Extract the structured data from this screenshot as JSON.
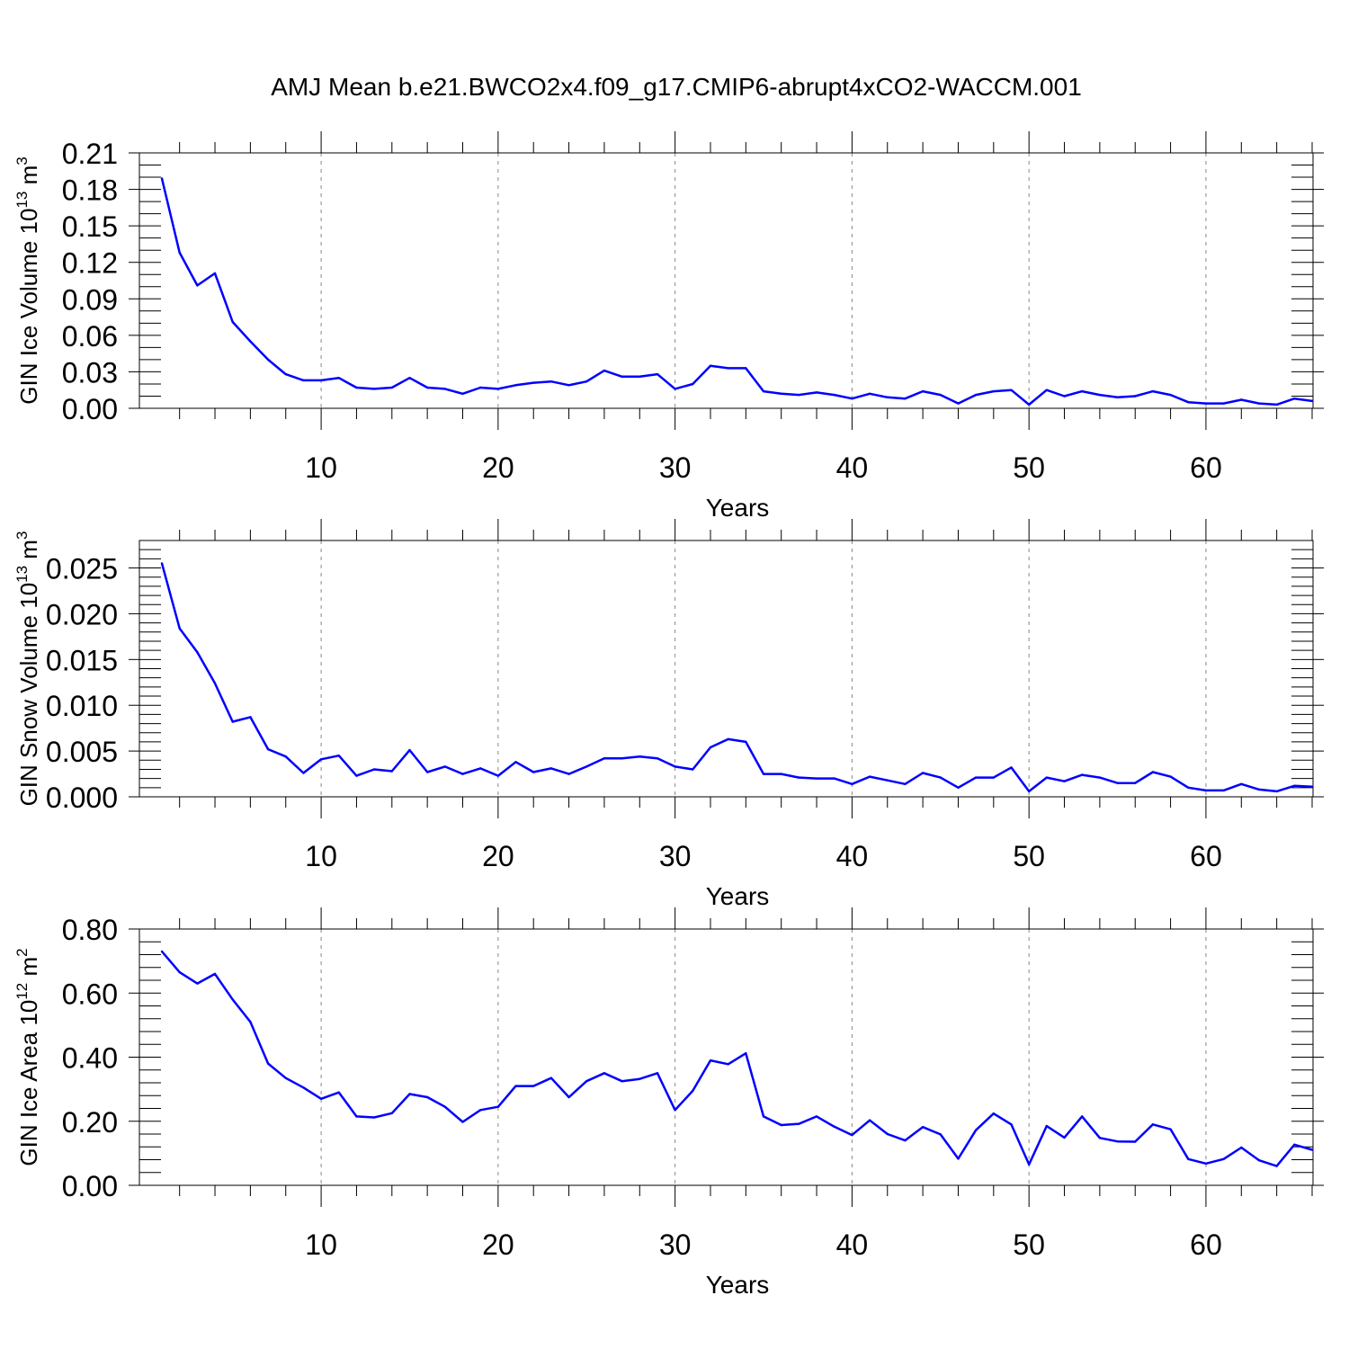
{
  "title": "AMJ Mean b.e21.BWCO2x4.f09_g17.CMIP6-abrupt4xCO2-WACCM.001",
  "colors": {
    "line": "#0000ff",
    "axis": "#000000",
    "grid": "#888888"
  },
  "chart_data": [
    {
      "type": "line",
      "ylabel": {
        "base": "GIN Ice Volume 10",
        "exp": "13",
        "unit": " m",
        "unit_exp": "3"
      },
      "xlabel": "Years",
      "xlim": [
        1,
        66
      ],
      "ylim": [
        0,
        0.21
      ],
      "xticks": [
        "10",
        "20",
        "30",
        "40",
        "50",
        "60"
      ],
      "yticks": [
        "0.00",
        "0.03",
        "0.06",
        "0.09",
        "0.12",
        "0.15",
        "0.18",
        "0.21"
      ],
      "grid": "vertical dashed at major x ticks",
      "series": [
        {
          "values": [
            0.189,
            0.128,
            0.101,
            0.111,
            0.071,
            0.055,
            0.04,
            0.028,
            0.023,
            0.023,
            0.025,
            0.017,
            0.016,
            0.017,
            0.025,
            0.017,
            0.016,
            0.012,
            0.017,
            0.016,
            0.019,
            0.021,
            0.022,
            0.019,
            0.022,
            0.031,
            0.026,
            0.026,
            0.028,
            0.016,
            0.02,
            0.035,
            0.033,
            0.033,
            0.014,
            0.012,
            0.011,
            0.013,
            0.011,
            0.008,
            0.012,
            0.009,
            0.008,
            0.014,
            0.011,
            0.004,
            0.011,
            0.014,
            0.015,
            0.003,
            0.015,
            0.01,
            0.014,
            0.011,
            0.009,
            0.01,
            0.014,
            0.011,
            0.005,
            0.004,
            0.004,
            0.007,
            0.004,
            0.003,
            0.008,
            0.006
          ]
        }
      ]
    },
    {
      "type": "line",
      "ylabel": {
        "base": "GIN Snow Volume 10",
        "exp": "13",
        "unit": " m",
        "unit_exp": "3"
      },
      "xlabel": "Years",
      "xlim": [
        1,
        66
      ],
      "ylim": [
        0,
        0.028
      ],
      "xticks": [
        "10",
        "20",
        "30",
        "40",
        "50",
        "60"
      ],
      "yticks": [
        "0.000",
        "0.005",
        "0.010",
        "0.015",
        "0.020",
        "0.025"
      ],
      "grid": "vertical dashed at major x ticks",
      "series": [
        {
          "values": [
            0.0255,
            0.0184,
            0.0158,
            0.0124,
            0.0082,
            0.0087,
            0.0052,
            0.0044,
            0.0026,
            0.0041,
            0.0045,
            0.0023,
            0.003,
            0.0028,
            0.0051,
            0.0027,
            0.0033,
            0.0025,
            0.0031,
            0.0023,
            0.0038,
            0.0027,
            0.0031,
            0.0025,
            0.0033,
            0.0042,
            0.0042,
            0.0044,
            0.0042,
            0.0033,
            0.003,
            0.0054,
            0.0063,
            0.006,
            0.0025,
            0.0025,
            0.0021,
            0.002,
            0.002,
            0.0014,
            0.0022,
            0.0018,
            0.0014,
            0.0026,
            0.0021,
            0.001,
            0.0021,
            0.0021,
            0.0032,
            0.0006,
            0.0021,
            0.0017,
            0.0024,
            0.0021,
            0.0015,
            0.0015,
            0.0027,
            0.0022,
            0.001,
            0.0007,
            0.0007,
            0.0014,
            0.0008,
            0.0006,
            0.0012,
            0.0011
          ]
        }
      ]
    },
    {
      "type": "line",
      "ylabel": {
        "base": "GIN Ice Area 10",
        "exp": "12",
        "unit": " m",
        "unit_exp": "2"
      },
      "xlabel": "Years",
      "xlim": [
        1,
        66
      ],
      "ylim": [
        0,
        0.8
      ],
      "xticks": [
        "10",
        "20",
        "30",
        "40",
        "50",
        "60"
      ],
      "yticks": [
        "0.00",
        "0.20",
        "0.40",
        "0.60",
        "0.80"
      ],
      "grid": "vertical dashed at major x ticks",
      "series": [
        {
          "values": [
            0.73,
            0.665,
            0.63,
            0.66,
            0.58,
            0.51,
            0.38,
            0.335,
            0.305,
            0.27,
            0.29,
            0.215,
            0.212,
            0.225,
            0.285,
            0.275,
            0.245,
            0.198,
            0.235,
            0.245,
            0.31,
            0.31,
            0.335,
            0.275,
            0.325,
            0.35,
            0.325,
            0.332,
            0.35,
            0.235,
            0.295,
            0.39,
            0.378,
            0.412,
            0.215,
            0.188,
            0.192,
            0.215,
            0.183,
            0.157,
            0.203,
            0.16,
            0.14,
            0.182,
            0.159,
            0.083,
            0.172,
            0.224,
            0.19,
            0.065,
            0.185,
            0.149,
            0.215,
            0.148,
            0.137,
            0.136,
            0.19,
            0.175,
            0.082,
            0.068,
            0.082,
            0.118,
            0.078,
            0.06,
            0.127,
            0.111
          ]
        }
      ]
    }
  ]
}
